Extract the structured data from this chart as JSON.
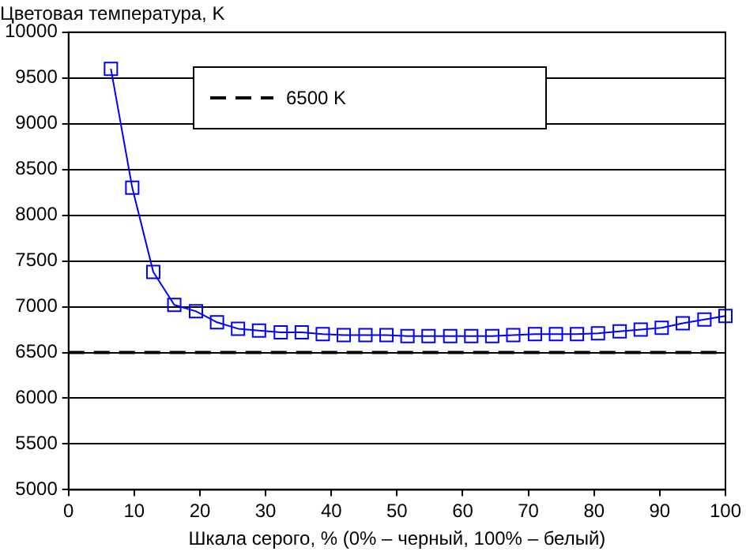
{
  "chart_data": {
    "type": "line",
    "ylabel": "Цветовая температура, K",
    "xlabel": "Шкала серого, % (0% – черный, 100% – белый)",
    "series": [
      {
        "color": "#0000ff",
        "x": [
          6.45,
          9.7,
          12.9,
          16.1,
          19.4,
          22.6,
          25.8,
          29,
          32.3,
          35.5,
          38.7,
          41.9,
          45.2,
          48.4,
          51.6,
          54.8,
          58.1,
          61.3,
          64.5,
          67.7,
          71,
          74.2,
          77.4,
          80.6,
          83.9,
          87.1,
          90.3,
          93.5,
          96.8,
          100
        ],
        "values": [
          9600,
          8300,
          7380,
          7020,
          6950,
          6830,
          6760,
          6740,
          6720,
          6720,
          6700,
          6690,
          6690,
          6690,
          6680,
          6680,
          6680,
          6680,
          6680,
          6690,
          6700,
          6700,
          6700,
          6710,
          6730,
          6750,
          6770,
          6820,
          6860,
          6900
        ]
      }
    ],
    "ref_lines": [
      {
        "axis": "y",
        "value": 6500,
        "label": "6500 K",
        "color": "#000000",
        "line_style": "dashed"
      }
    ],
    "marker": "square",
    "line_style": "solid",
    "grid": "y",
    "xlim": [
      0,
      100
    ],
    "xticks": [
      0,
      10,
      20,
      30,
      40,
      50,
      60,
      70,
      80,
      90,
      100
    ],
    "ylim": [
      5000,
      10000
    ],
    "yticks": [
      5000,
      5500,
      6000,
      6500,
      7000,
      7500,
      8000,
      8500,
      9000,
      9500,
      10000
    ]
  }
}
